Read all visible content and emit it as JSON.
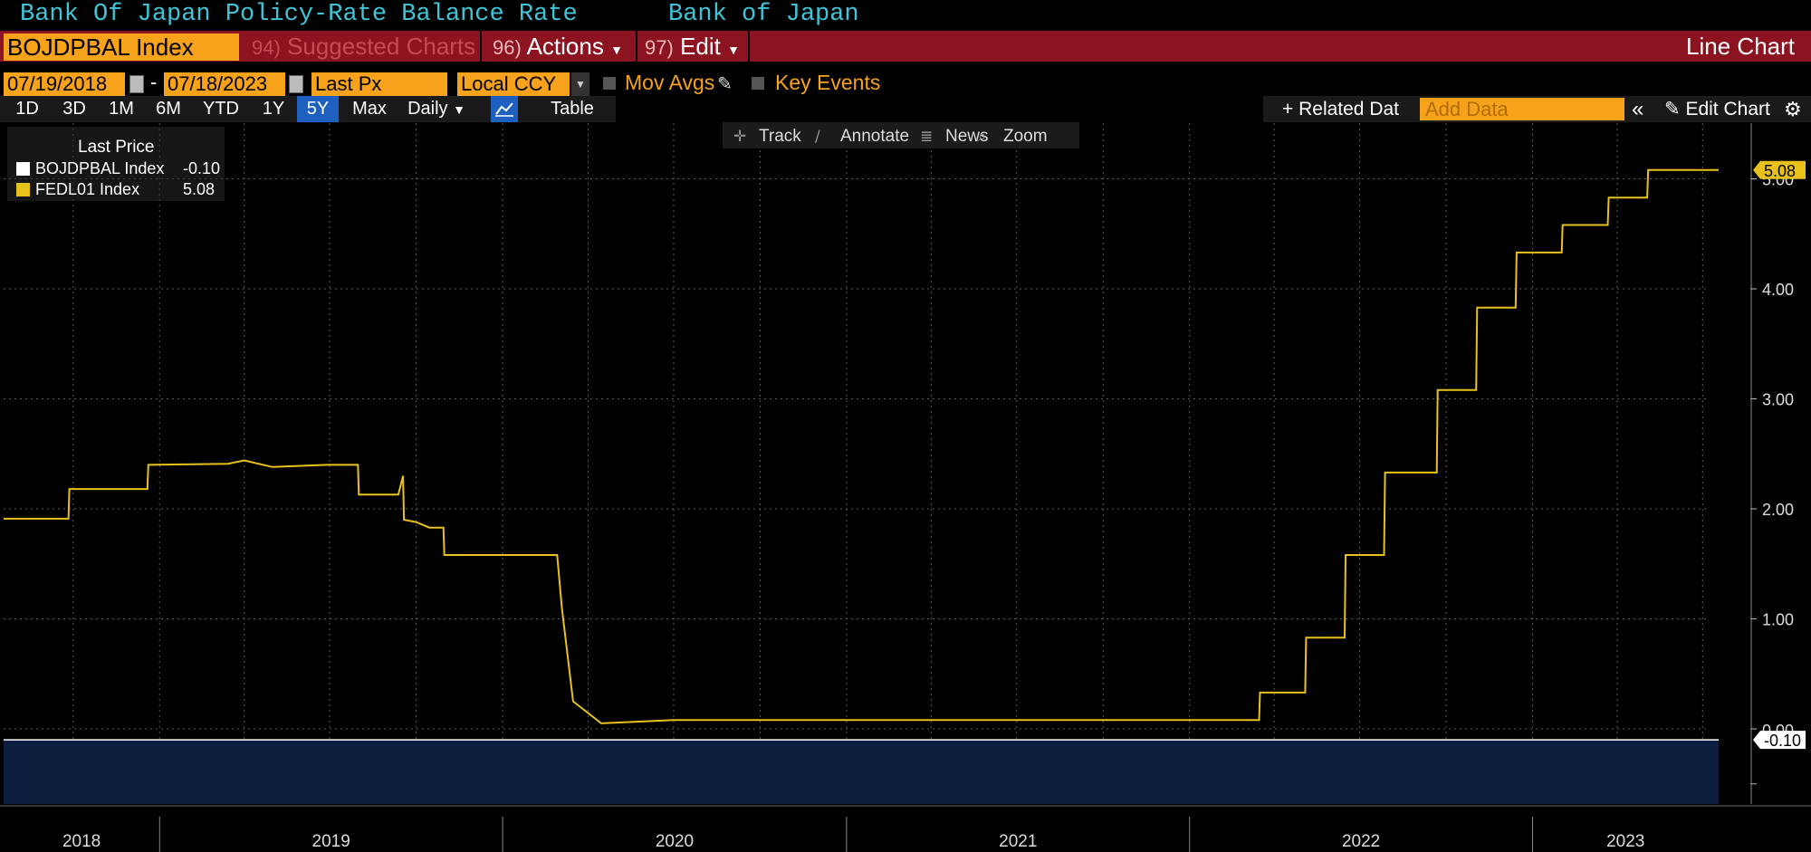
{
  "header": {
    "title": "Bank Of Japan Policy-Rate Balance Rate",
    "source": "Bank of Japan"
  },
  "toolbar": {
    "ticker": "BOJDPBAL Index",
    "suggested_num": "94)",
    "suggested_label": "Suggested Charts",
    "actions_num": "96)",
    "actions_label": "Actions",
    "edit_num": "97)",
    "edit_label": "Edit",
    "chart_type": "Line Chart"
  },
  "controls": {
    "start_date": "07/19/2018",
    "dash": "-",
    "end_date": "07/18/2023",
    "field": "Last Px",
    "currency": "Local CCY",
    "mov_avgs": "Mov Avgs",
    "key_events": "Key Events"
  },
  "ranges": [
    "1D",
    "3D",
    "1M",
    "6M",
    "YTD",
    "1Y",
    "5Y",
    "Max"
  ],
  "active_range": "5Y",
  "frequency": "Daily",
  "table_label": "Table",
  "right_tools": {
    "related": "+ Related Dat",
    "add_placeholder": "Add Data",
    "edit_chart": "Edit Chart"
  },
  "chart_tools": [
    "Track",
    "Annotate",
    "News",
    "Zoom"
  ],
  "legend": {
    "header": "Last Price",
    "items": [
      {
        "name": "BOJDPBAL Index",
        "value": "-0.10",
        "color": "#ffffff"
      },
      {
        "name": "FEDL01 Index",
        "value": "5.08",
        "color": "#e8c21a"
      }
    ]
  },
  "chart_data": {
    "type": "line",
    "xlabel": "",
    "ylabel": "",
    "x_axis_labels": [
      "2018",
      "2019",
      "2020",
      "2021",
      "2022",
      "2023"
    ],
    "y_ticks": [
      "1.00",
      "2.00",
      "3.00",
      "4.00",
      "5.00"
    ],
    "y_zero_label": "0.00",
    "ylim": [
      -0.6,
      5.5
    ],
    "grid": true,
    "last_value_labels": [
      "5.08",
      "-0.10"
    ],
    "series": [
      {
        "name": "FEDL01 Index",
        "color": "#e8c21a",
        "points": [
          [
            "2018-07-19",
            1.91
          ],
          [
            "2018-09-26",
            1.91
          ],
          [
            "2018-09-27",
            2.18
          ],
          [
            "2018-12-19",
            2.18
          ],
          [
            "2018-12-20",
            2.4
          ],
          [
            "2019-03-15",
            2.41
          ],
          [
            "2019-04-01",
            2.44
          ],
          [
            "2019-05-01",
            2.38
          ],
          [
            "2019-06-28",
            2.4
          ],
          [
            "2019-07-31",
            2.4
          ],
          [
            "2019-08-01",
            2.13
          ],
          [
            "2019-09-12",
            2.13
          ],
          [
            "2019-09-17",
            2.3
          ],
          [
            "2019-09-18",
            1.9
          ],
          [
            "2019-10-01",
            1.88
          ],
          [
            "2019-10-15",
            1.83
          ],
          [
            "2019-10-30",
            1.83
          ],
          [
            "2019-10-31",
            1.58
          ],
          [
            "2020-02-28",
            1.58
          ],
          [
            "2020-03-04",
            1.1
          ],
          [
            "2020-03-16",
            0.25
          ],
          [
            "2020-04-15",
            0.05
          ],
          [
            "2020-07-01",
            0.08
          ],
          [
            "2021-12-31",
            0.08
          ],
          [
            "2022-03-16",
            0.08
          ],
          [
            "2022-03-17",
            0.33
          ],
          [
            "2022-05-04",
            0.33
          ],
          [
            "2022-05-05",
            0.83
          ],
          [
            "2022-06-15",
            0.83
          ],
          [
            "2022-06-16",
            1.58
          ],
          [
            "2022-07-27",
            1.58
          ],
          [
            "2022-07-28",
            2.33
          ],
          [
            "2022-09-21",
            2.33
          ],
          [
            "2022-09-22",
            3.08
          ],
          [
            "2022-11-02",
            3.08
          ],
          [
            "2022-11-03",
            3.83
          ],
          [
            "2022-12-14",
            3.83
          ],
          [
            "2022-12-15",
            4.33
          ],
          [
            "2023-02-01",
            4.33
          ],
          [
            "2023-02-02",
            4.58
          ],
          [
            "2023-03-22",
            4.58
          ],
          [
            "2023-03-23",
            4.83
          ],
          [
            "2023-05-03",
            4.83
          ],
          [
            "2023-05-04",
            5.08
          ],
          [
            "2023-07-18",
            5.08
          ]
        ]
      },
      {
        "name": "BOJDPBAL Index",
        "color": "#ffffff",
        "points": [
          [
            "2018-07-19",
            -0.1
          ],
          [
            "2023-07-18",
            -0.1
          ]
        ]
      }
    ]
  }
}
